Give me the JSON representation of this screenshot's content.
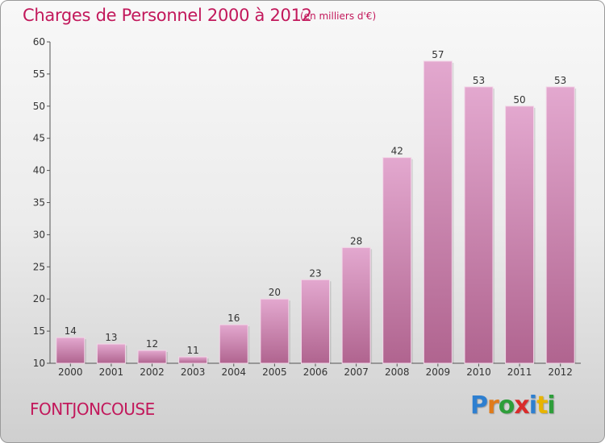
{
  "title": "Charges de Personnel 2000 à 2012",
  "subtitle": "(en milliers d'€)",
  "commune": "FONTJONCOUSE",
  "logo": {
    "letters": [
      "P",
      "r",
      "o",
      "x",
      "i",
      "t",
      "i"
    ],
    "colors": [
      "#2e7fd0",
      "#e07b1a",
      "#2e9e3a",
      "#d92b2b",
      "#2e7fd0",
      "#e8b400",
      "#2e9e3a"
    ]
  },
  "colors": {
    "accent": "#c2185b",
    "bar_top": "#e3a8cf",
    "bar_bottom": "#b0648f"
  },
  "chart_data": {
    "type": "bar",
    "categories": [
      "2000",
      "2001",
      "2002",
      "2003",
      "2004",
      "2005",
      "2006",
      "2007",
      "2008",
      "2009",
      "2010",
      "2011",
      "2012"
    ],
    "values": [
      14,
      13,
      12,
      11,
      16,
      20,
      23,
      28,
      42,
      57,
      53,
      50,
      53
    ],
    "ylim": [
      10,
      60
    ],
    "yticks": [
      10,
      15,
      20,
      25,
      30,
      35,
      40,
      45,
      50,
      55,
      60
    ],
    "grid": false
  }
}
